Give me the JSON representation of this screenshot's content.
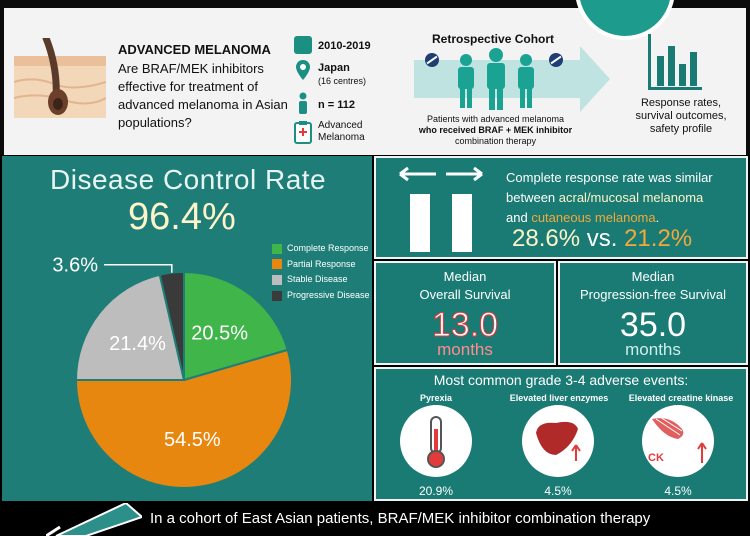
{
  "study": {
    "title": "ADVANCED MELANOMA",
    "question": "Are BRAF/MEK inhibitors effective for treatment of advanced melanoma in Asian populations?",
    "period": "2010-2019",
    "location": "Japan",
    "centres": "(16 centres)",
    "n": "n = 112",
    "disease_line1": "Advanced",
    "disease_line2": "Melanoma",
    "cohort_title": "Retrospective Cohort",
    "cohort_desc_1": "Patients with advanced melanoma",
    "cohort_desc_2": "who received BRAF + MEK inhibitor",
    "cohort_desc_3": "combination therapy",
    "outcomes_1": "Response rates,",
    "outcomes_2": "survival outcomes,",
    "outcomes_3": "safety profile"
  },
  "dcr": {
    "title": "Disease Control Rate",
    "value": "96.4%"
  },
  "chart_data": {
    "type": "pie",
    "categories": [
      "Complete Response",
      "Partial Response",
      "Stable Disease",
      "Progressive Disease"
    ],
    "values": [
      20.5,
      54.5,
      21.4,
      3.6
    ],
    "labels": [
      "20.5%",
      "54.5%",
      "21.4%",
      "3.6%"
    ],
    "colors": [
      "#3fb54a",
      "#e8870f",
      "#bdbdbd",
      "#3a3a3a"
    ],
    "legend": "right"
  },
  "complete_response": {
    "line1": "Complete response rate was similar",
    "line2a": "between ",
    "line2b": "acral/mucosal melanoma",
    "line3a": "and ",
    "line3b": "cutaneous melanoma",
    "line3c": ".",
    "value_a": "28.6%",
    "vs": " vs. ",
    "value_b": "21.2%"
  },
  "os": {
    "title1": "Median",
    "title2": "Overall Survival",
    "value": "13.0",
    "unit": "months"
  },
  "pfs": {
    "title1": "Median",
    "title2": "Progression-free Survival",
    "value": "35.0",
    "unit": "months"
  },
  "ae": {
    "title": "Most common grade 3-4 adverse events:",
    "items": [
      {
        "label": "Pyrexia",
        "value": "20.9%"
      },
      {
        "label": "Elevated liver enzymes",
        "value": "4.5%"
      },
      {
        "label": "Elevated creatine kinase",
        "value": "4.5%",
        "badge": "CK"
      }
    ]
  },
  "conclusion": "In a cohort of East Asian patients, BRAF/MEK inhibitor combination therapy",
  "colors": {
    "teal": "#1a7a74",
    "orange": "#e8870f",
    "green": "#3fb54a",
    "cream": "#fff4c9",
    "red": "#e23b3b"
  }
}
